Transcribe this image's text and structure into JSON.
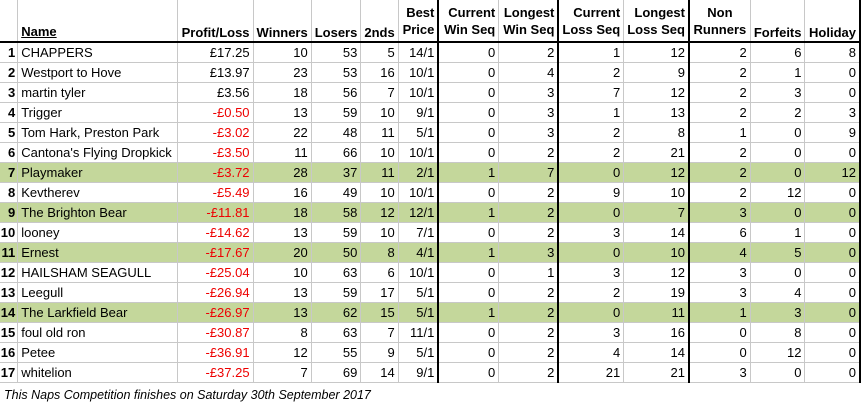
{
  "columns": {
    "name": "Name",
    "profit": "Profit/Loss",
    "winners": "Winners",
    "losers": "Losers",
    "seconds": "2nds",
    "best_price": [
      "Best",
      "Price"
    ],
    "current_win": [
      "Current",
      "Win Seq"
    ],
    "longest_win": [
      "Longest",
      "Win Seq"
    ],
    "current_loss": [
      "Current",
      "Loss Seq"
    ],
    "longest_loss": [
      "Longest",
      "Loss Seq"
    ],
    "non_runners": [
      "Non",
      "Runners"
    ],
    "forfeits": "Forfeits",
    "holiday": "Holiday"
  },
  "highlight_color": "#c4d79b",
  "negative_color": "#ee0000",
  "rows": [
    {
      "rank": "1",
      "name": "CHAPPERS",
      "profit": "£17.25",
      "neg": false,
      "winners": "10",
      "losers": "53",
      "seconds": "5",
      "best_price": "14/1",
      "current_win": "0",
      "longest_win": "2",
      "current_loss": "1",
      "longest_loss": "12",
      "non_runners": "2",
      "forfeits": "6",
      "holiday": "8",
      "hl": false
    },
    {
      "rank": "2",
      "name": "Westport to Hove",
      "profit": "£13.97",
      "neg": false,
      "winners": "23",
      "losers": "53",
      "seconds": "16",
      "best_price": "10/1",
      "current_win": "0",
      "longest_win": "4",
      "current_loss": "2",
      "longest_loss": "9",
      "non_runners": "2",
      "forfeits": "1",
      "holiday": "0",
      "hl": false
    },
    {
      "rank": "3",
      "name": "martin tyler",
      "profit": "£3.56",
      "neg": false,
      "winners": "18",
      "losers": "56",
      "seconds": "7",
      "best_price": "10/1",
      "current_win": "0",
      "longest_win": "3",
      "current_loss": "7",
      "longest_loss": "12",
      "non_runners": "2",
      "forfeits": "3",
      "holiday": "0",
      "hl": false
    },
    {
      "rank": "4",
      "name": "Trigger",
      "profit": "-£0.50",
      "neg": true,
      "winners": "13",
      "losers": "59",
      "seconds": "10",
      "best_price": "9/1",
      "current_win": "0",
      "longest_win": "3",
      "current_loss": "1",
      "longest_loss": "13",
      "non_runners": "2",
      "forfeits": "2",
      "holiday": "3",
      "hl": false
    },
    {
      "rank": "5",
      "name": "Tom Hark, Preston Park",
      "profit": "-£3.02",
      "neg": true,
      "winners": "22",
      "losers": "48",
      "seconds": "11",
      "best_price": "5/1",
      "current_win": "0",
      "longest_win": "3",
      "current_loss": "2",
      "longest_loss": "8",
      "non_runners": "1",
      "forfeits": "0",
      "holiday": "9",
      "hl": false
    },
    {
      "rank": "6",
      "name": "Cantona's Flying Dropkick",
      "profit": "-£3.50",
      "neg": true,
      "winners": "11",
      "losers": "66",
      "seconds": "10",
      "best_price": "10/1",
      "current_win": "0",
      "longest_win": "2",
      "current_loss": "2",
      "longest_loss": "21",
      "non_runners": "2",
      "forfeits": "0",
      "holiday": "0",
      "hl": false
    },
    {
      "rank": "7",
      "name": "Playmaker",
      "profit": "-£3.72",
      "neg": true,
      "winners": "28",
      "losers": "37",
      "seconds": "11",
      "best_price": "2/1",
      "current_win": "1",
      "longest_win": "7",
      "current_loss": "0",
      "longest_loss": "12",
      "non_runners": "2",
      "forfeits": "0",
      "holiday": "12",
      "hl": true
    },
    {
      "rank": "8",
      "name": "Kevtherev",
      "profit": "-£5.49",
      "neg": true,
      "winners": "16",
      "losers": "49",
      "seconds": "10",
      "best_price": "10/1",
      "current_win": "0",
      "longest_win": "2",
      "current_loss": "9",
      "longest_loss": "10",
      "non_runners": "2",
      "forfeits": "12",
      "holiday": "0",
      "hl": false
    },
    {
      "rank": "9",
      "name": "The Brighton Bear",
      "profit": "-£11.81",
      "neg": true,
      "winners": "18",
      "losers": "58",
      "seconds": "12",
      "best_price": "12/1",
      "current_win": "1",
      "longest_win": "2",
      "current_loss": "0",
      "longest_loss": "7",
      "non_runners": "3",
      "forfeits": "0",
      "holiday": "0",
      "hl": true
    },
    {
      "rank": "10",
      "name": "looney",
      "profit": "-£14.62",
      "neg": true,
      "winners": "13",
      "losers": "59",
      "seconds": "10",
      "best_price": "7/1",
      "current_win": "0",
      "longest_win": "2",
      "current_loss": "3",
      "longest_loss": "14",
      "non_runners": "6",
      "forfeits": "1",
      "holiday": "0",
      "hl": false
    },
    {
      "rank": "11",
      "name": "Ernest",
      "profit": "-£17.67",
      "neg": true,
      "winners": "20",
      "losers": "50",
      "seconds": "8",
      "best_price": "4/1",
      "current_win": "1",
      "longest_win": "3",
      "current_loss": "0",
      "longest_loss": "10",
      "non_runners": "4",
      "forfeits": "5",
      "holiday": "0",
      "hl": true
    },
    {
      "rank": "12",
      "name": "HAILSHAM SEAGULL",
      "profit": "-£25.04",
      "neg": true,
      "winners": "10",
      "losers": "63",
      "seconds": "6",
      "best_price": "10/1",
      "current_win": "0",
      "longest_win": "1",
      "current_loss": "3",
      "longest_loss": "12",
      "non_runners": "3",
      "forfeits": "0",
      "holiday": "0",
      "hl": false
    },
    {
      "rank": "13",
      "name": "Leegull",
      "profit": "-£26.94",
      "neg": true,
      "winners": "13",
      "losers": "59",
      "seconds": "17",
      "best_price": "5/1",
      "current_win": "0",
      "longest_win": "2",
      "current_loss": "2",
      "longest_loss": "19",
      "non_runners": "3",
      "forfeits": "4",
      "holiday": "0",
      "hl": false
    },
    {
      "rank": "14",
      "name": "The Larkfield Bear",
      "profit": "-£26.97",
      "neg": true,
      "winners": "13",
      "losers": "62",
      "seconds": "15",
      "best_price": "5/1",
      "current_win": "1",
      "longest_win": "2",
      "current_loss": "0",
      "longest_loss": "11",
      "non_runners": "1",
      "forfeits": "3",
      "holiday": "0",
      "hl": true
    },
    {
      "rank": "15",
      "name": "foul old ron",
      "profit": "-£30.87",
      "neg": true,
      "winners": "8",
      "losers": "63",
      "seconds": "7",
      "best_price": "11/1",
      "current_win": "0",
      "longest_win": "2",
      "current_loss": "3",
      "longest_loss": "16",
      "non_runners": "0",
      "forfeits": "8",
      "holiday": "0",
      "hl": false
    },
    {
      "rank": "16",
      "name": "Petee",
      "profit": "-£36.91",
      "neg": true,
      "winners": "12",
      "losers": "55",
      "seconds": "9",
      "best_price": "5/1",
      "current_win": "0",
      "longest_win": "2",
      "current_loss": "4",
      "longest_loss": "14",
      "non_runners": "0",
      "forfeits": "12",
      "holiday": "0",
      "hl": false
    },
    {
      "rank": "17",
      "name": "whitelion",
      "profit": "-£37.25",
      "neg": true,
      "winners": "7",
      "losers": "69",
      "seconds": "14",
      "best_price": "9/1",
      "current_win": "0",
      "longest_win": "2",
      "current_loss": "21",
      "longest_loss": "21",
      "non_runners": "3",
      "forfeits": "0",
      "holiday": "0",
      "hl": false
    }
  ],
  "footer": "This Naps Competition finishes on Saturday 30th September 2017"
}
